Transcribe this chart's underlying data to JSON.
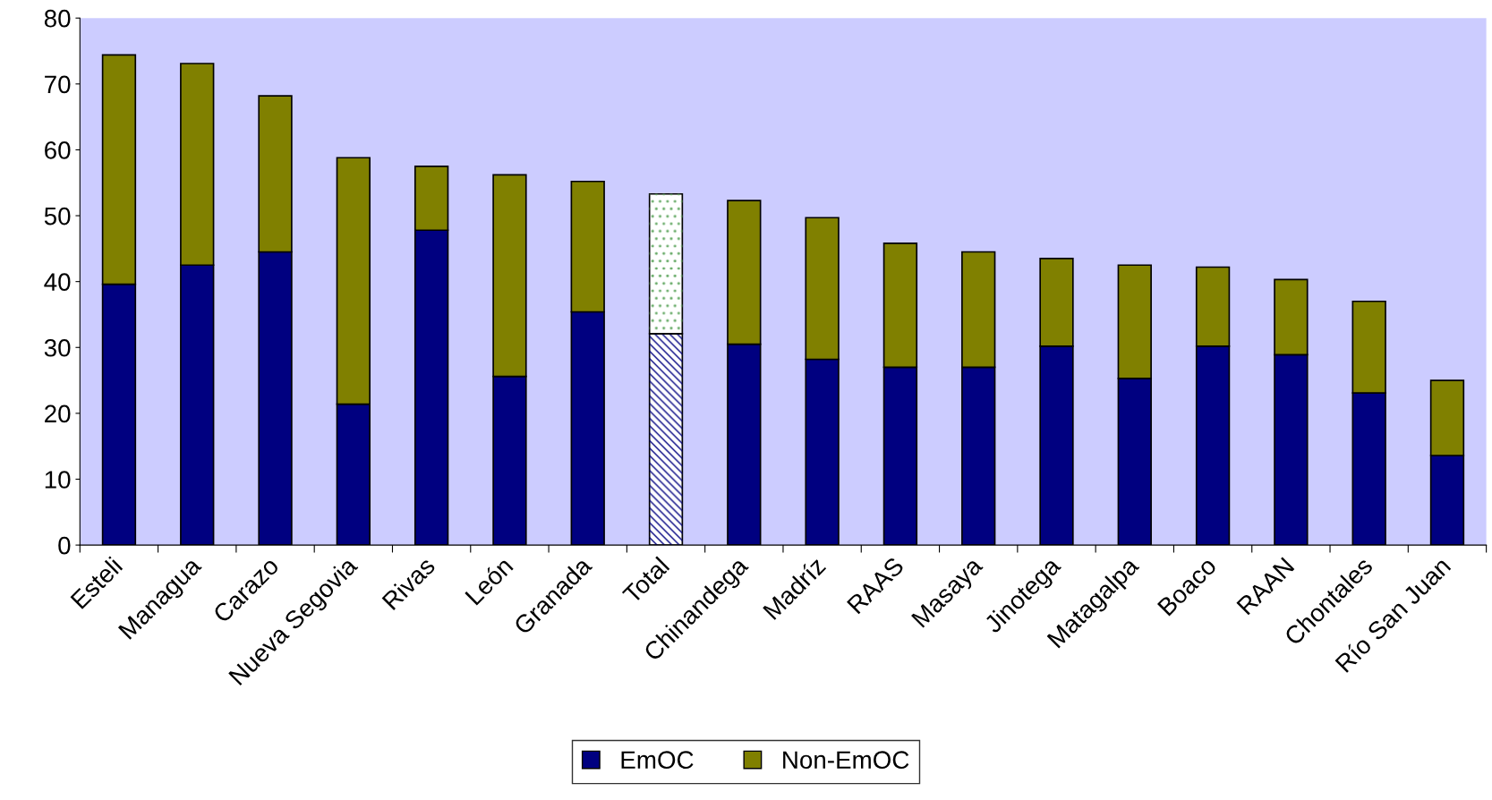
{
  "chart_data": {
    "type": "bar",
    "stacked": true,
    "categories": [
      "Esteli",
      "Managua",
      "Carazo",
      "Nueva Segovia",
      "Rivas",
      "León",
      "Granada",
      "Total",
      "Chinandega",
      "Madríz",
      "RAAS",
      "Masaya",
      "Jinotega",
      "Matagalpa",
      "Boaco",
      "RAAN",
      "Chontales",
      "Río San Juan"
    ],
    "series": [
      {
        "name": "EmOC",
        "color": "#000080",
        "colors": [
          "#000080",
          "#000080",
          "#000080",
          "#000080",
          "#000080",
          "#000080",
          "#000080",
          "#ffffff",
          "#000080",
          "#000080",
          "#000080",
          "#000080",
          "#000080",
          "#000080",
          "#000080",
          "#000080",
          "#000080",
          "#000080"
        ],
        "values": [
          39.6,
          42.5,
          44.5,
          21.4,
          47.8,
          25.6,
          35.4,
          32.1,
          30.5,
          28.2,
          27.0,
          27.0,
          30.2,
          25.3,
          30.2,
          28.9,
          23.1,
          13.6
        ]
      },
      {
        "name": "Non-EmOC",
        "color": "#808000",
        "colors": [
          "#808000",
          "#808000",
          "#808000",
          "#808000",
          "#808000",
          "#808000",
          "#808000",
          "#ffffff",
          "#808000",
          "#808000",
          "#808000",
          "#808000",
          "#808000",
          "#808000",
          "#808000",
          "#808000",
          "#808000",
          "#808000"
        ],
        "values": [
          34.8,
          30.6,
          23.7,
          37.4,
          9.7,
          30.6,
          19.8,
          21.2,
          21.8,
          21.5,
          18.8,
          17.5,
          13.3,
          17.2,
          12.0,
          11.4,
          13.9,
          11.4
        ]
      }
    ],
    "ylim": [
      0,
      80
    ],
    "yticks": [
      0,
      10,
      20,
      30,
      40,
      50,
      60,
      70,
      80
    ],
    "grid": false,
    "legend": "bottom"
  }
}
